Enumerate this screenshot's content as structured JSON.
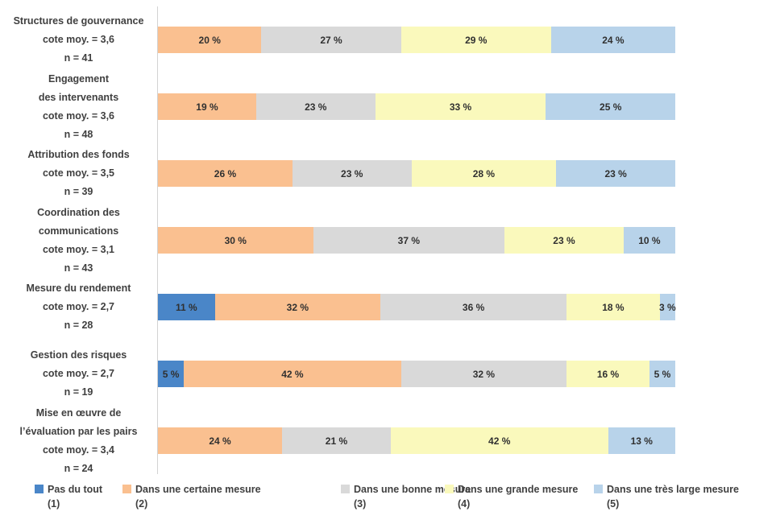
{
  "chart_data": {
    "type": "bar",
    "orientation": "horizontal",
    "stacked": true,
    "title": "",
    "xlabel": "",
    "ylabel": "",
    "xlim": [
      0,
      100
    ],
    "grid": false,
    "legend_position": "bottom",
    "value_suffix": " %",
    "series": [
      {
        "name": "Pas du tout",
        "scale": "(1)",
        "color": "#4A86C8"
      },
      {
        "name": "Dans une certaine mesure",
        "scale": "(2)",
        "color": "#FAC090"
      },
      {
        "name": "Dans une bonne mesure",
        "scale": "(3)",
        "color": "#D9D9D9"
      },
      {
        "name": "Dans une grande mesure",
        "scale": "(4)",
        "color": "#FAF9BC"
      },
      {
        "name": "Dans une très large mesure",
        "scale": "(5)",
        "color": "#B8D3EA"
      }
    ],
    "rows": [
      {
        "label_lines": [
          "Structures de gouvernance",
          "cote moy. = 3,6",
          "n = 41"
        ],
        "cote_moy": "3,6",
        "n": 41,
        "values": [
          0,
          20,
          27,
          29,
          24
        ]
      },
      {
        "label_lines": [
          "Engagement",
          "des intervenants",
          "cote moy. = 3,6",
          "n = 48"
        ],
        "cote_moy": "3,6",
        "n": 48,
        "values": [
          0,
          19,
          23,
          33,
          25
        ]
      },
      {
        "label_lines": [
          "Attribution des fonds",
          "cote moy. = 3,5",
          "n = 39"
        ],
        "cote_moy": "3,5",
        "n": 39,
        "values": [
          0,
          26,
          23,
          28,
          23
        ]
      },
      {
        "label_lines": [
          "Coordination des",
          "communications",
          "cote moy. = 3,1",
          "n = 43"
        ],
        "cote_moy": "3,1",
        "n": 43,
        "values": [
          0,
          30,
          37,
          23,
          10
        ]
      },
      {
        "label_lines": [
          "Mesure du rendement",
          "cote moy. = 2,7",
          "n = 28"
        ],
        "cote_moy": "2,7",
        "n": 28,
        "values": [
          11,
          32,
          36,
          18,
          3
        ]
      },
      {
        "label_lines": [
          "Gestion des risques",
          "cote moy. = 2,7",
          "n = 19"
        ],
        "cote_moy": "2,7",
        "n": 19,
        "values": [
          5,
          42,
          32,
          16,
          5
        ]
      },
      {
        "label_lines": [
          "Mise en œuvre de",
          "l’évaluation par les pairs",
          "cote moy. = 3,4",
          "n = 24"
        ],
        "cote_moy": "3,4",
        "n": 24,
        "values": [
          0,
          24,
          21,
          42,
          13
        ]
      }
    ]
  },
  "colors": {
    "background": "#FFFFFF",
    "axis_line": "#D2D2D2",
    "label_text": "#404040",
    "value_text": "#303030"
  }
}
